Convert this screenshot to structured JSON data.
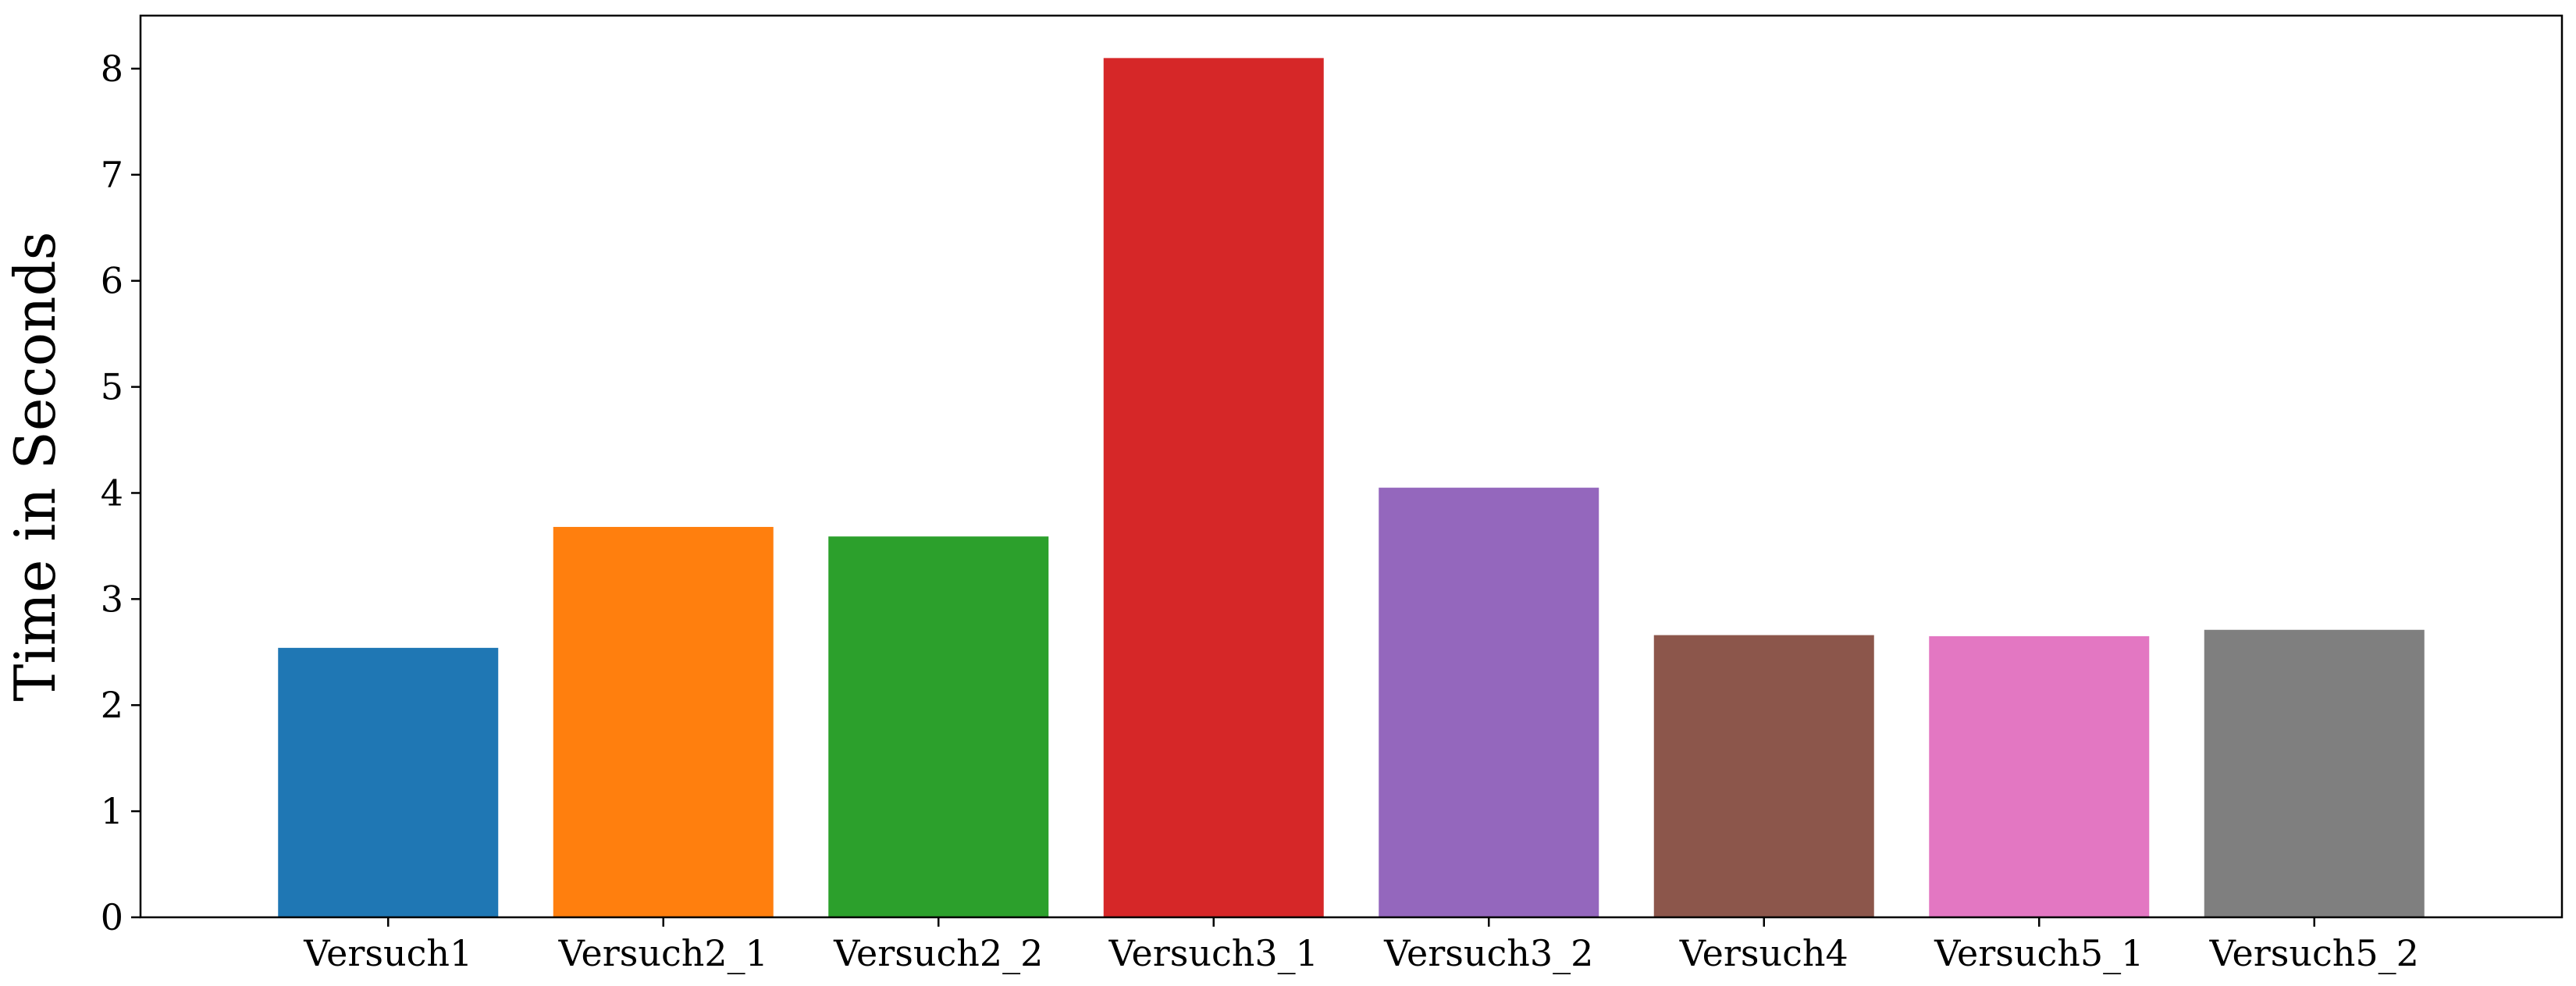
{
  "chart_data": {
    "type": "bar",
    "categories": [
      "Versuch1",
      "Versuch2_1",
      "Versuch2_2",
      "Versuch3_1",
      "Versuch3_2",
      "Versuch4",
      "Versuch5_1",
      "Versuch5_2"
    ],
    "values": [
      2.54,
      3.68,
      3.59,
      8.1,
      4.05,
      2.66,
      2.65,
      2.71
    ],
    "colors": [
      "#1f77b4",
      "#ff7f0e",
      "#2ca02c",
      "#d62728",
      "#9467bd",
      "#8c564b",
      "#e377c2",
      "#7f7f7f"
    ],
    "title": "",
    "xlabel": "",
    "ylabel": "Time in Seconds",
    "ylim": [
      0,
      8.5
    ],
    "yticks": [
      0,
      1,
      2,
      3,
      4,
      5,
      6,
      7,
      8
    ],
    "grid": false,
    "legend": false
  }
}
